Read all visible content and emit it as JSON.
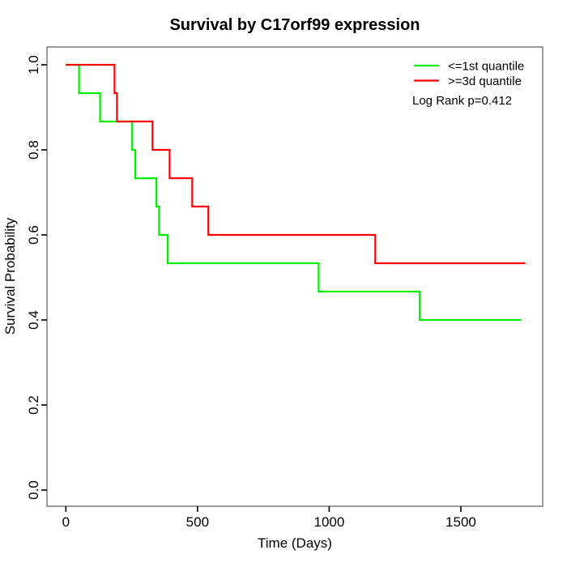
{
  "chart_data": {
    "type": "line",
    "subtype": "kaplan_meier_step",
    "title": "Survival by C17orf99 expression",
    "xlabel": "Time (Days)",
    "ylabel": "Survival Probability",
    "xlim": [
      0,
      1812
    ],
    "ylim": [
      0.0,
      1.0
    ],
    "grid": false,
    "legend_position": "topright",
    "annotation": "Log Rank p=0.412",
    "x_ticks": [
      {
        "value": 0,
        "label": "0"
      },
      {
        "value": 500,
        "label": "500"
      },
      {
        "value": 1000,
        "label": "1000"
      },
      {
        "value": 1500,
        "label": "1500"
      }
    ],
    "y_ticks": [
      {
        "value": 0.0,
        "label": "0.0"
      },
      {
        "value": 0.2,
        "label": "0.2"
      },
      {
        "value": 0.4,
        "label": "0.4"
      },
      {
        "value": 0.6,
        "label": "0.6"
      },
      {
        "value": 0.8,
        "label": "0.8"
      },
      {
        "value": 1.0,
        "label": "1.0"
      }
    ],
    "series": [
      {
        "name": "<=1st quantile",
        "color": "#00ee00",
        "x": [
          0,
          50,
          130,
          252,
          264,
          344,
          354,
          387,
          960,
          1344,
          1730
        ],
        "y": [
          1.0,
          0.9333,
          0.8667,
          0.8,
          0.7333,
          0.6667,
          0.6,
          0.5333,
          0.4667,
          0.4,
          0.4
        ]
      },
      {
        "name": ">=3d quantile",
        "color": "#ff0000",
        "x": [
          0,
          185,
          194,
          329,
          394,
          480,
          541,
          1175,
          1745
        ],
        "y": [
          1.0,
          0.9333,
          0.8667,
          0.8,
          0.7333,
          0.6667,
          0.6,
          0.5333,
          0.5333
        ]
      }
    ]
  }
}
